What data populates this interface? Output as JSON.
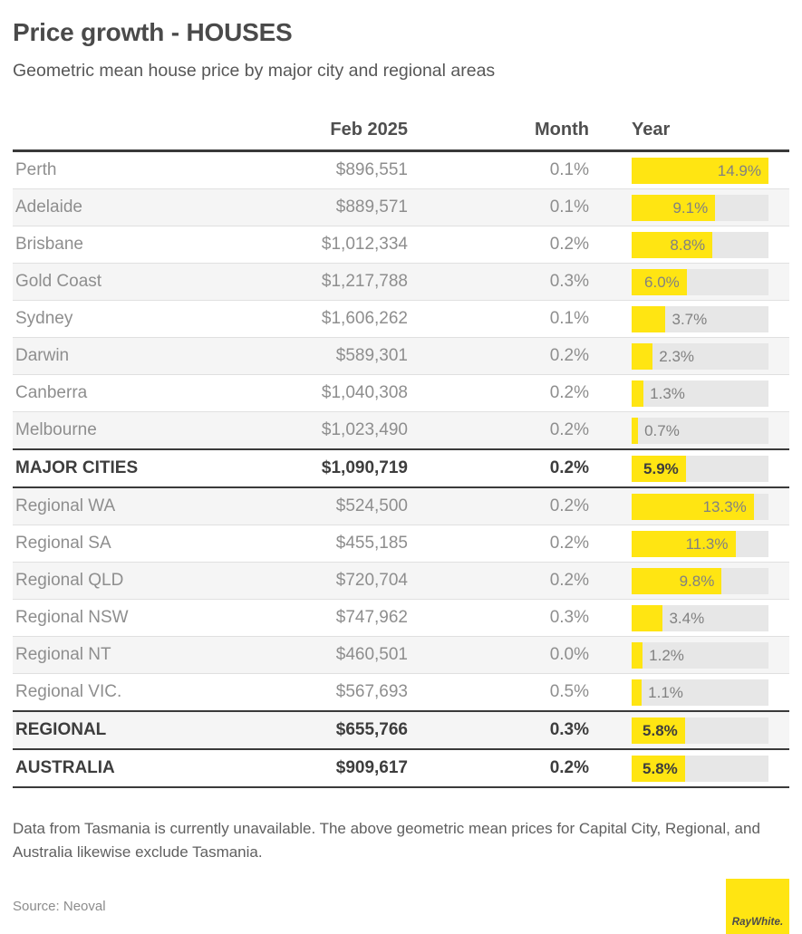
{
  "page": {
    "title": "Price growth - HOUSES",
    "subtitle": "Geometric mean house price by major city and regional areas",
    "footnote": "Data from Tasmania is currently unavailable. The above geometric mean prices for Capital City, Regional, and Australia likewise exclude Tasmania.",
    "source": "Source: Neoval",
    "logo_text": "RayWhite."
  },
  "colors": {
    "accent_yellow": "#ffe512",
    "bar_track_gray": "#e7e7e7",
    "dark_rule": "#3a3a3a",
    "alt_row_bg": "#f5f5f5"
  },
  "chart_data": {
    "type": "table+bar",
    "title": "Price growth - HOUSES",
    "subtitle": "Geometric mean house price by major city and regional areas",
    "columns": [
      "",
      "Feb 2025",
      "Month",
      "Year"
    ],
    "bar_axis_max_pct": 14.9,
    "bar_label_inside_threshold_pct": 5.0,
    "rows": [
      {
        "label": "Perth",
        "price": "$896,551",
        "month": "0.1%",
        "year_pct": 14.9,
        "year_label": "14.9%",
        "total": false,
        "rule": "none"
      },
      {
        "label": "Adelaide",
        "price": "$889,571",
        "month": "0.1%",
        "year_pct": 9.1,
        "year_label": "9.1%",
        "total": false,
        "rule": "light"
      },
      {
        "label": "Brisbane",
        "price": "$1,012,334",
        "month": "0.2%",
        "year_pct": 8.8,
        "year_label": "8.8%",
        "total": false,
        "rule": "light"
      },
      {
        "label": "Gold Coast",
        "price": "$1,217,788",
        "month": "0.3%",
        "year_pct": 6.0,
        "year_label": "6.0%",
        "total": false,
        "rule": "light"
      },
      {
        "label": "Sydney",
        "price": "$1,606,262",
        "month": "0.1%",
        "year_pct": 3.7,
        "year_label": "3.7%",
        "total": false,
        "rule": "light"
      },
      {
        "label": "Darwin",
        "price": "$589,301",
        "month": "0.2%",
        "year_pct": 2.3,
        "year_label": "2.3%",
        "total": false,
        "rule": "light"
      },
      {
        "label": "Canberra",
        "price": "$1,040,308",
        "month": "0.2%",
        "year_pct": 1.3,
        "year_label": "1.3%",
        "total": false,
        "rule": "light"
      },
      {
        "label": "Melbourne",
        "price": "$1,023,490",
        "month": "0.2%",
        "year_pct": 0.7,
        "year_label": "0.7%",
        "total": false,
        "rule": "light"
      },
      {
        "label": "MAJOR CITIES",
        "price": "$1,090,719",
        "month": "0.2%",
        "year_pct": 5.9,
        "year_label": "5.9%",
        "total": true,
        "rule": "dark"
      },
      {
        "label": "Regional WA",
        "price": "$524,500",
        "month": "0.2%",
        "year_pct": 13.3,
        "year_label": "13.3%",
        "total": false,
        "rule": "dark"
      },
      {
        "label": "Regional SA",
        "price": "$455,185",
        "month": "0.2%",
        "year_pct": 11.3,
        "year_label": "11.3%",
        "total": false,
        "rule": "light"
      },
      {
        "label": "Regional QLD",
        "price": "$720,704",
        "month": "0.2%",
        "year_pct": 9.8,
        "year_label": "9.8%",
        "total": false,
        "rule": "light"
      },
      {
        "label": "Regional NSW",
        "price": "$747,962",
        "month": "0.3%",
        "year_pct": 3.4,
        "year_label": "3.4%",
        "total": false,
        "rule": "light"
      },
      {
        "label": "Regional NT",
        "price": "$460,501",
        "month": "0.0%",
        "year_pct": 1.2,
        "year_label": "1.2%",
        "total": false,
        "rule": "light"
      },
      {
        "label": "Regional VIC.",
        "price": "$567,693",
        "month": "0.5%",
        "year_pct": 1.1,
        "year_label": "1.1%",
        "total": false,
        "rule": "light"
      },
      {
        "label": "REGIONAL",
        "price": "$655,766",
        "month": "0.3%",
        "year_pct": 5.8,
        "year_label": "5.8%",
        "total": true,
        "rule": "dark"
      },
      {
        "label": "AUSTRALIA",
        "price": "$909,617",
        "month": "0.2%",
        "year_pct": 5.8,
        "year_label": "5.8%",
        "total": true,
        "rule": "dark"
      }
    ]
  }
}
